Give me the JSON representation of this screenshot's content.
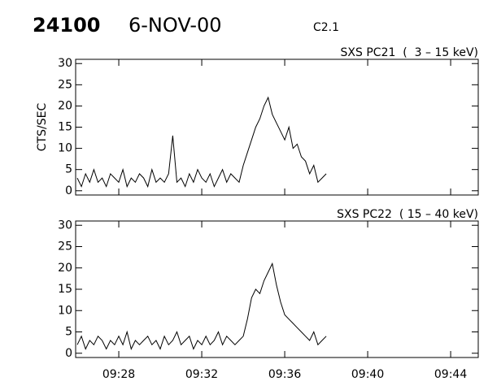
{
  "header": {
    "number": "24100",
    "date": "6-NOV-00",
    "class": "C2.1"
  },
  "chart_data": [
    {
      "type": "line",
      "label": "SXS PC21  (  3 – 15 keV)",
      "ylabel": "CTS/SEC",
      "color": "#000000",
      "x": [
        566.0,
        566.2,
        566.4,
        566.6,
        566.8,
        567.0,
        567.2,
        567.4,
        567.6,
        567.8,
        568.0,
        568.2,
        568.4,
        568.6,
        568.8,
        569.0,
        569.2,
        569.4,
        569.6,
        569.8,
        570.0,
        570.2,
        570.4,
        570.6,
        570.8,
        571.0,
        571.2,
        571.4,
        571.6,
        571.8,
        572.0,
        572.2,
        572.4,
        572.6,
        572.8,
        573.0,
        573.2,
        573.4,
        573.6,
        573.8,
        574.0,
        574.2,
        574.4,
        574.6,
        574.8,
        575.0,
        575.2,
        575.4,
        575.6,
        575.8,
        576.0,
        576.2,
        576.4,
        576.6,
        576.8,
        577.0,
        577.2,
        577.4,
        577.6,
        577.8,
        578.0
      ],
      "values": [
        3,
        1,
        4,
        2,
        5,
        2,
        3,
        1,
        4,
        3,
        2,
        5,
        1,
        3,
        2,
        4,
        3,
        1,
        5,
        2,
        3,
        2,
        4,
        13,
        2,
        3,
        1,
        4,
        2,
        5,
        3,
        2,
        4,
        1,
        3,
        5,
        2,
        4,
        3,
        2,
        6,
        9,
        12,
        15,
        17,
        20,
        22,
        18,
        16,
        14,
        12,
        15,
        10,
        11,
        8,
        7,
        4,
        6,
        2,
        3,
        4
      ],
      "xlim": [
        565.92,
        585.33
      ],
      "ylim": [
        -1,
        31
      ],
      "yticks": [
        0,
        5,
        10,
        15,
        20,
        25,
        30
      ]
    },
    {
      "type": "line",
      "label": "SXS PC22  ( 15 – 40 keV)",
      "color": "#000000",
      "x": [
        566.0,
        566.2,
        566.4,
        566.6,
        566.8,
        567.0,
        567.2,
        567.4,
        567.6,
        567.8,
        568.0,
        568.2,
        568.4,
        568.6,
        568.8,
        569.0,
        569.2,
        569.4,
        569.6,
        569.8,
        570.0,
        570.2,
        570.4,
        570.6,
        570.8,
        571.0,
        571.2,
        571.4,
        571.6,
        571.8,
        572.0,
        572.2,
        572.4,
        572.6,
        572.8,
        573.0,
        573.2,
        573.4,
        573.6,
        573.8,
        574.0,
        574.2,
        574.4,
        574.6,
        574.8,
        575.0,
        575.2,
        575.4,
        575.6,
        575.8,
        576.0,
        576.2,
        576.4,
        576.6,
        576.8,
        577.0,
        577.2,
        577.4,
        577.6,
        577.8,
        578.0
      ],
      "values": [
        2,
        4,
        1,
        3,
        2,
        4,
        3,
        1,
        3,
        2,
        4,
        2,
        5,
        1,
        3,
        2,
        3,
        4,
        2,
        3,
        1,
        4,
        2,
        3,
        5,
        2,
        3,
        4,
        1,
        3,
        2,
        4,
        2,
        3,
        5,
        2,
        4,
        3,
        2,
        3,
        4,
        8,
        13,
        15,
        14,
        17,
        19,
        21,
        16,
        12,
        9,
        8,
        7,
        6,
        5,
        4,
        3,
        5,
        2,
        3,
        4
      ],
      "xlim": [
        565.92,
        585.33
      ],
      "ylim": [
        -1,
        31
      ],
      "yticks": [
        0,
        5,
        10,
        15,
        20,
        25,
        30
      ],
      "xticks": [
        {
          "value": 568,
          "label": "09:28"
        },
        {
          "value": 572,
          "label": "09:32"
        },
        {
          "value": 576,
          "label": "09:36"
        },
        {
          "value": 580,
          "label": "09:40"
        },
        {
          "value": 584,
          "label": "09:44"
        }
      ]
    }
  ]
}
